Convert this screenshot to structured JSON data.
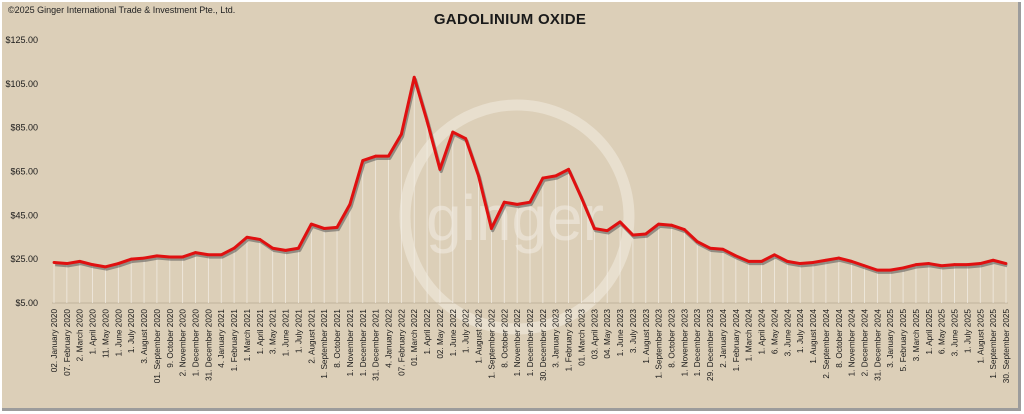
{
  "copyright": "©2025 Ginger International Trade & Investment Pte., Ltd.",
  "watermark": "ginger",
  "chart_data": {
    "type": "line",
    "title": "GADOLINIUM OXIDE",
    "xlabel": "",
    "ylabel": "",
    "ylim": [
      5,
      125
    ],
    "yticks": [
      "$5.00",
      "$25.00",
      "$45.00",
      "$65.00",
      "$85.00",
      "$105.00",
      "$125.00"
    ],
    "ytick_values": [
      5,
      25,
      45,
      65,
      85,
      105,
      125
    ],
    "grid": false,
    "line_color": "#e01010",
    "shadow_color": "#555555",
    "x": [
      "02. January 2020",
      "07. February 2020",
      "2. March 2020",
      "1. April 2020",
      "11. May 2020",
      "1. June 2020",
      "1. July 2020",
      "3. August 2020",
      "01. September 2020",
      "9. October 2020",
      "2. November 2020",
      "1. December 2020",
      "31. December 2020",
      "4. January 2021",
      "1. February 2021",
      "1. March 2021",
      "1. April 2021",
      "3. May 2021",
      "1. June 2021",
      "1. July 2021",
      "2. August 2021",
      "1. September 2021",
      "8. October 2021",
      "1. November 2021",
      "1. December 2021",
      "31. December 2021",
      "4. January 2022",
      "07. February 2022",
      "01. March 2022",
      "1. April 2022",
      "02. May 2022",
      "1. June 2022",
      "1. July 2022",
      "1. August 2022",
      "1. September 2022",
      "8. October 2022",
      "1. November 2022",
      "1. December 2022",
      "30. December 2022",
      "3. January 2023",
      "1. February 2023",
      "01. March 2023",
      "03. April 2023",
      "04. May 2023",
      "1. June 2023",
      "3. July 2023",
      "1. August 2023",
      "1. September 2023",
      "8. October 2023",
      "1. November 2023",
      "1. December 2023",
      "29. December 2023",
      "2. January 2024",
      "1. February 2024",
      "1. March 2024",
      "1. April 2024",
      "6. May 2024",
      "3. June 2024",
      "1. July 2024",
      "1. August 2024",
      "2. September 2024",
      "8. October 2024",
      "1. November 2024",
      "2. December 2024",
      "31. December 2024",
      "3. January 2025",
      "5. February 2025",
      "3. March 2025",
      "1. April 2025",
      "6. May 2025",
      "3. June 2025",
      "1. July 2025",
      "1. August 2025",
      "1. September 2025",
      "30. September 2025"
    ],
    "series": [
      {
        "values": [
          23.5,
          23,
          24,
          22.5,
          21.5,
          23,
          25,
          25.5,
          26.5,
          26,
          26,
          28,
          27,
          27,
          30,
          35,
          34,
          30,
          29,
          30,
          41,
          39,
          39.5,
          50,
          70,
          72,
          72,
          82,
          108,
          88,
          66,
          83,
          80,
          63,
          39,
          51,
          50,
          51,
          62,
          63,
          66,
          53,
          39,
          38,
          42,
          36,
          36.5,
          41,
          40.5,
          38.5,
          33,
          30,
          29.5,
          26.5,
          24,
          24,
          27,
          24,
          23,
          23.5,
          24.5,
          25.5,
          24,
          22,
          20,
          20,
          21,
          22.5,
          23,
          22,
          22.5,
          22.5,
          23,
          24.5,
          23
        ]
      }
    ]
  }
}
